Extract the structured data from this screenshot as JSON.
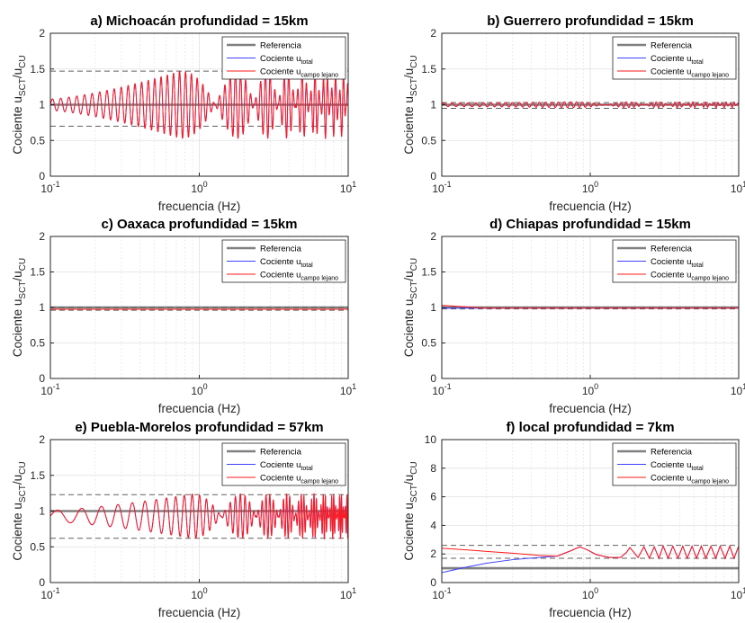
{
  "chart_data": [
    {
      "id": "a",
      "type": "line",
      "title": "a)  Michoacán  profundidad = 15km",
      "xlabel": "frecuencia (Hz)",
      "ylabel": "Cociente u",
      "ylabel_sub": "SCT",
      "ylabel_mid": "/u",
      "ylabel_sub2": "CU",
      "x_scale": "log",
      "xlim": [
        0.1,
        10
      ],
      "ylim": [
        0,
        2
      ],
      "x_ticks": [
        {
          "base": "10",
          "exp": "-1"
        },
        {
          "base": "10",
          "exp": "0"
        },
        {
          "base": "10",
          "exp": "1"
        }
      ],
      "y_ticks": [
        "0",
        "0.5",
        "1",
        "1.5",
        "2"
      ],
      "y_tick_values": [
        0,
        0.5,
        1,
        1.5,
        2
      ],
      "reference": 1,
      "dashed_bounds": [
        0.7,
        1.47
      ],
      "total_mean": 1,
      "oscillation": {
        "period_start": 0.013,
        "period_end": 0.6,
        "amp_start": 0.08,
        "growth_end": 0.75,
        "amp_max": 0.47,
        "amp_pattern": "beating",
        "beat_period": 1.05
      },
      "grid": true,
      "legend_position": "top-right"
    },
    {
      "id": "b",
      "type": "line",
      "title": "b)  Guerrero  profundidad = 15km",
      "xlabel": "frecuencia (Hz)",
      "ylabel": "Cociente u",
      "ylabel_sub": "SCT",
      "ylabel_mid": "/u",
      "ylabel_sub2": "CU",
      "x_scale": "log",
      "xlim": [
        0.1,
        10
      ],
      "ylim": [
        0,
        2
      ],
      "x_ticks": [
        {
          "base": "10",
          "exp": "-1"
        },
        {
          "base": "10",
          "exp": "0"
        },
        {
          "base": "10",
          "exp": "1"
        }
      ],
      "y_ticks": [
        "0",
        "0.5",
        "1",
        "1.5",
        "2"
      ],
      "y_tick_values": [
        0,
        0.5,
        1,
        1.5,
        2
      ],
      "reference": 1,
      "dashed_bounds": [
        0.95,
        1.03
      ],
      "total_mean": 1,
      "oscillation": {
        "period_start": 0.013,
        "period_end": 0.6,
        "amp_start": 0.025,
        "growth_end": 0.75,
        "amp_max": 0.04,
        "amp_pattern": "beating",
        "beat_period": 1.05
      },
      "grid": true,
      "legend_position": "top-right"
    },
    {
      "id": "c",
      "type": "line",
      "title": "c)  Oaxaca  profundidad = 15km",
      "xlabel": "frecuencia (Hz)",
      "ylabel": "Cociente u",
      "ylabel_sub": "SCT",
      "ylabel_mid": "/u",
      "ylabel_sub2": "CU",
      "x_scale": "log",
      "xlim": [
        0.1,
        10
      ],
      "ylim": [
        0,
        2
      ],
      "x_ticks": [
        {
          "base": "10",
          "exp": "-1"
        },
        {
          "base": "10",
          "exp": "0"
        },
        {
          "base": "10",
          "exp": "1"
        }
      ],
      "y_ticks": [
        "0",
        "0.5",
        "1",
        "1.5",
        "2"
      ],
      "y_tick_values": [
        0,
        0.5,
        1,
        1.5,
        2
      ],
      "reference": 1,
      "dashed_bounds": [
        0.96,
        1.0
      ],
      "total_mean": 0.975,
      "oscillation": {
        "period_start": 0.5,
        "period_end": 0.5,
        "amp_start": 0,
        "growth_end": 1,
        "amp_max": 0,
        "amp_pattern": "none",
        "beat_period": 1
      },
      "grid": true,
      "legend_position": "top-right"
    },
    {
      "id": "d",
      "type": "line",
      "title": "d)  Chiapas  profundidad = 15km",
      "xlabel": "frecuencia (Hz)",
      "ylabel": "Cociente u",
      "ylabel_sub": "SCT",
      "ylabel_mid": "/u",
      "ylabel_sub2": "CU",
      "x_scale": "log",
      "xlim": [
        0.1,
        10
      ],
      "ylim": [
        0,
        2
      ],
      "x_ticks": [
        {
          "base": "10",
          "exp": "-1"
        },
        {
          "base": "10",
          "exp": "0"
        },
        {
          "base": "10",
          "exp": "1"
        }
      ],
      "y_ticks": [
        "0",
        "0.5",
        "1",
        "1.5",
        "2"
      ],
      "y_tick_values": [
        0,
        0.5,
        1,
        1.5,
        2
      ],
      "reference": 1,
      "dashed_bounds": [
        0.98,
        1.0
      ],
      "total_mean": 0.99,
      "far_start": 1.03,
      "oscillation": {
        "period_start": 0.5,
        "period_end": 0.5,
        "amp_start": 0,
        "growth_end": 1,
        "amp_max": 0,
        "amp_pattern": "none",
        "beat_period": 1
      },
      "grid": true,
      "legend_position": "top-right"
    },
    {
      "id": "e",
      "type": "line",
      "title": "e)  Puebla-Morelos  profundidad = 57km",
      "xlabel": "frecuencia (Hz)",
      "ylabel": "Cociente u",
      "ylabel_sub": "SCT",
      "ylabel_mid": "/u",
      "ylabel_sub2": "CU",
      "x_scale": "log",
      "xlim": [
        0.1,
        10
      ],
      "ylim": [
        0,
        2
      ],
      "x_ticks": [
        {
          "base": "10",
          "exp": "-1"
        },
        {
          "base": "10",
          "exp": "0"
        },
        {
          "base": "10",
          "exp": "1"
        }
      ],
      "y_ticks": [
        "0",
        "0.5",
        "1",
        "1.5",
        "2"
      ],
      "y_tick_values": [
        0,
        0.5,
        1,
        1.5,
        2
      ],
      "reference": 1,
      "dashed_bounds": [
        0.62,
        1.23
      ],
      "total_mean": 0.93,
      "oscillation": {
        "period_start": 0.045,
        "period_end": 0.27,
        "amp_start": 0.08,
        "growth_end": 0.9,
        "amp_max": 0.31,
        "amp_pattern": "beating",
        "beat_period": 1.0
      },
      "grid": true,
      "legend_position": "top-right"
    },
    {
      "id": "f",
      "type": "line",
      "title": "f)  local  profundidad = 7km",
      "xlabel": "frecuencia (Hz)",
      "ylabel": "Cociente u",
      "ylabel_sub": "SCT",
      "ylabel_mid": "/u",
      "ylabel_sub2": "CU",
      "x_scale": "log",
      "xlim": [
        0.1,
        10
      ],
      "ylim": [
        0,
        10
      ],
      "x_ticks": [
        {
          "base": "10",
          "exp": "-1"
        },
        {
          "base": "10",
          "exp": "0"
        },
        {
          "base": "10",
          "exp": "1"
        }
      ],
      "y_ticks": [
        "0",
        "2",
        "4",
        "6",
        "8",
        "10"
      ],
      "y_tick_values": [
        0,
        2,
        4,
        6,
        8,
        10
      ],
      "reference": 1,
      "dashed_bounds": [
        1.7,
        2.6
      ],
      "local_curve": {
        "x": [
          0.1,
          0.15,
          0.2,
          0.3,
          0.45,
          0.6,
          0.75,
          0.85,
          0.95,
          1.1,
          1.35,
          1.6,
          1.75,
          1.85,
          2.1,
          2.3,
          2.5,
          2.7,
          2.9,
          3.1,
          3.35,
          3.6,
          3.9,
          4.2,
          4.5,
          4.85,
          5.2,
          5.6,
          6.0,
          6.5,
          7.0,
          7.5,
          8.1,
          8.7,
          9.3,
          10
        ],
        "total": [
          0.7,
          1.1,
          1.35,
          1.6,
          1.75,
          1.85,
          2.25,
          2.5,
          2.3,
          1.95,
          1.75,
          1.75,
          2.1,
          2.45,
          1.75,
          2.5,
          1.7,
          2.5,
          1.7,
          2.55,
          1.7,
          2.55,
          1.7,
          2.55,
          1.7,
          2.55,
          1.7,
          2.55,
          1.7,
          2.55,
          1.7,
          2.55,
          1.7,
          2.55,
          1.7,
          2.55
        ],
        "far": [
          2.4,
          2.28,
          2.18,
          2.05,
          1.9,
          1.85,
          2.25,
          2.5,
          2.3,
          1.95,
          1.75,
          1.75,
          2.1,
          2.45,
          1.75,
          2.5,
          1.7,
          2.5,
          1.7,
          2.55,
          1.7,
          2.55,
          1.7,
          2.55,
          1.7,
          2.55,
          1.7,
          2.55,
          1.7,
          2.55,
          1.7,
          2.55,
          1.7,
          2.55,
          1.7,
          2.55
        ]
      },
      "grid": true,
      "legend_position": "top-right"
    }
  ],
  "legend": {
    "reference": "Referencia",
    "total_main": "Cociente u",
    "total_sub": "total",
    "far_main": "Cociente u",
    "far_sub": "campo lejano"
  },
  "colors": {
    "reference": "#808080",
    "total": "#4040ff",
    "far": "#ff1a1a",
    "dashed": "#606060",
    "grid": "#e0e0e0",
    "axis": "#262626"
  }
}
